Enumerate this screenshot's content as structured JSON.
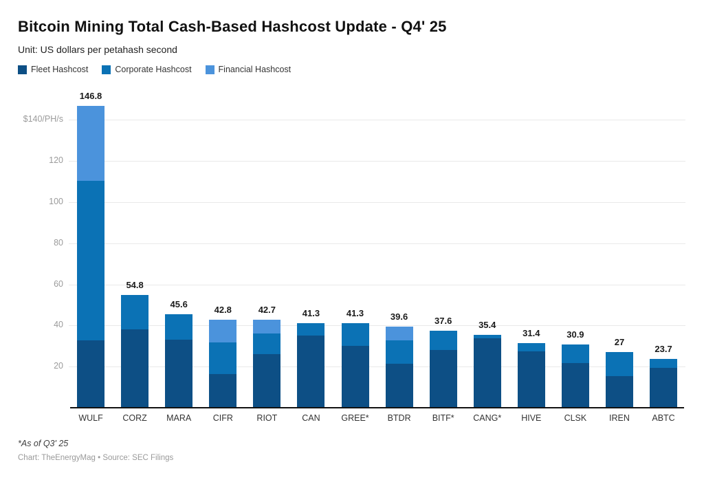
{
  "header": {
    "title": "Bitcoin Mining Total Cash-Based Hashcost Update - Q4' 25",
    "subtitle": "Unit: US dollars per petahash second"
  },
  "legend": {
    "items": [
      {
        "label": "Fleet Hashcost",
        "color": "#0d4f85"
      },
      {
        "label": "Corporate Hashcost",
        "color": "#0b72b5"
      },
      {
        "label": "Financial Hashcost",
        "color": "#4b93dc"
      }
    ]
  },
  "footer": {
    "footnote": "*As of Q3' 25",
    "credit": "Chart: TheEnergyMag • Source: SEC Filings"
  },
  "chart_data": {
    "type": "bar",
    "stacked": true,
    "title": "Bitcoin Mining Total Cash-Based Hashcost Update - Q4' 25",
    "xlabel": "",
    "ylabel": "US dollars per petahash second",
    "ylim": [
      0,
      150
    ],
    "grid": true,
    "legend_position": "top-left",
    "categories": [
      "WULF",
      "CORZ",
      "MARA",
      "CIFR",
      "RIOT",
      "CAN",
      "GREE*",
      "BTDR",
      "BITF*",
      "CANG*",
      "HIVE",
      "CLSK",
      "IREN",
      "ABTC"
    ],
    "series": [
      {
        "name": "Fleet Hashcost",
        "color": "#0d4f85",
        "values": [
          32.8,
          38.2,
          33.0,
          16.3,
          26.0,
          35.0,
          30.0,
          21.5,
          28.0,
          33.7,
          27.3,
          21.8,
          15.5,
          19.3
        ]
      },
      {
        "name": "Corporate Hashcost",
        "color": "#0b72b5",
        "values": [
          77.5,
          16.6,
          12.6,
          15.4,
          10.1,
          6.3,
          11.3,
          11.2,
          9.6,
          1.7,
          4.1,
          9.1,
          11.5,
          4.4
        ]
      },
      {
        "name": "Financial Hashcost",
        "color": "#4b93dc",
        "values": [
          36.5,
          0,
          0,
          11.1,
          6.6,
          0,
          0,
          6.9,
          0,
          0,
          0,
          0,
          0,
          0
        ]
      }
    ],
    "totals": [
      146.8,
      54.8,
      45.6,
      42.8,
      42.7,
      41.3,
      41.3,
      39.6,
      37.6,
      35.4,
      31.4,
      30.9,
      27,
      23.7
    ],
    "total_labels": [
      "146.8",
      "54.8",
      "45.6",
      "42.8",
      "42.7",
      "41.3",
      "41.3",
      "39.6",
      "37.6",
      "35.4",
      "31.4",
      "30.9",
      "27",
      "23.7"
    ],
    "y_axis": {
      "ticks": [
        {
          "value": 20,
          "label": "20"
        },
        {
          "value": 40,
          "label": "40"
        },
        {
          "value": 60,
          "label": "60"
        },
        {
          "value": 80,
          "label": "80"
        },
        {
          "value": 100,
          "label": "100"
        },
        {
          "value": 120,
          "label": "120"
        },
        {
          "value": 140,
          "label": "$140/PH/s"
        }
      ]
    }
  }
}
